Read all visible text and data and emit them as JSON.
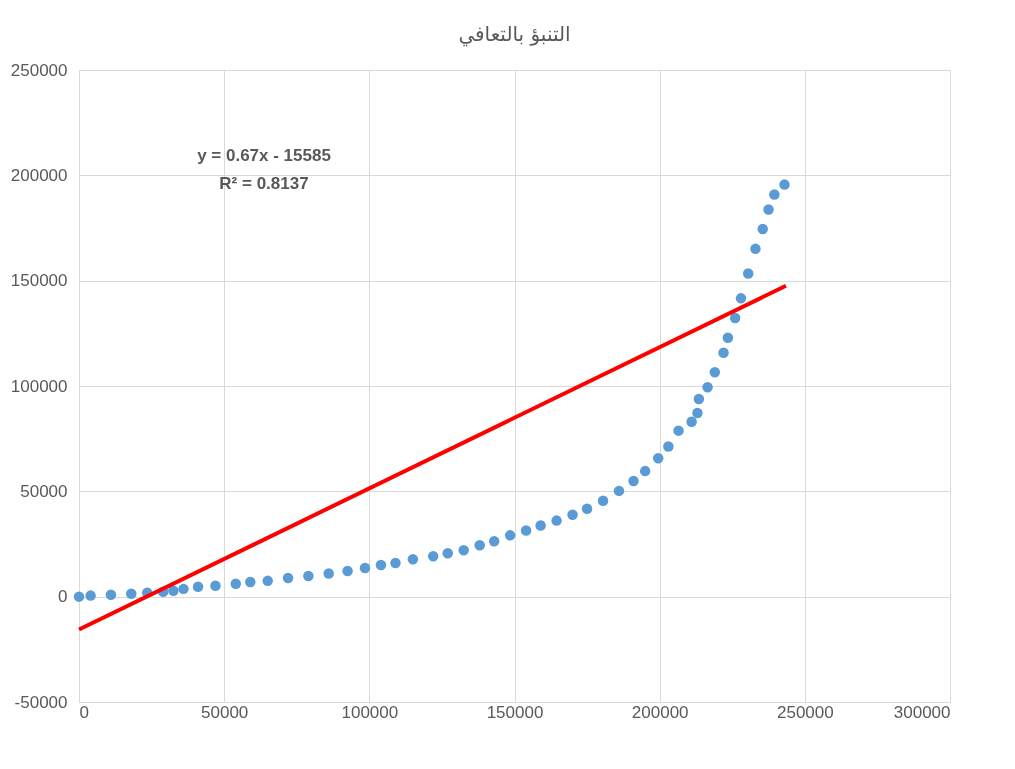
{
  "chart_data": {
    "type": "scatter",
    "title": "التنبؤ بالتعافي",
    "xlim": [
      0,
      300000
    ],
    "xticks": [
      0,
      50000,
      100000,
      150000,
      200000,
      250000,
      300000
    ],
    "ylim": [
      -50000,
      250000
    ],
    "yticks": [
      -50000,
      0,
      50000,
      100000,
      150000,
      200000,
      250000
    ],
    "grid": true,
    "marker": "circle",
    "annotations": [
      "y = 0.67x - 15585",
      "R² = 0.8137"
    ],
    "series": [
      {
        "color": "#5b9bd5",
        "x": [
          0,
          4000,
          11000,
          18000,
          23500,
          29000,
          32500,
          36000,
          41000,
          47000,
          54000,
          59000,
          65000,
          72000,
          79000,
          86000,
          92500,
          98500,
          104000,
          109000,
          115000,
          122000,
          127000,
          132500,
          138000,
          143000,
          148500,
          154000,
          159000,
          164500,
          170000,
          175000,
          180500,
          186000,
          191000,
          195000,
          199500,
          203000,
          206500,
          211000,
          213000,
          213500,
          216500,
          219000,
          222000,
          223500,
          226000,
          228000,
          230500,
          233000,
          235500,
          237500,
          239500,
          243000
        ],
        "values": [
          0,
          500,
          900,
          1400,
          1900,
          2300,
          2800,
          3700,
          4700,
          5200,
          6100,
          7000,
          7500,
          8900,
          9800,
          11000,
          12200,
          13600,
          15000,
          16000,
          17800,
          19200,
          20600,
          22000,
          24400,
          26300,
          29100,
          31400,
          33800,
          36100,
          38900,
          41700,
          45500,
          50200,
          54900,
          59600,
          65700,
          71300,
          78800,
          83000,
          87200,
          93800,
          99400,
          106500,
          115800,
          122900,
          132300,
          141600,
          153400,
          165100,
          174500,
          183800,
          190900,
          195600
        ]
      },
      {
        "type": "line",
        "color": "#ff0000",
        "line_style": "solid",
        "marker": "none",
        "x": [
          0,
          243500
        ],
        "values": [
          -15600,
          147600
        ]
      }
    ]
  }
}
